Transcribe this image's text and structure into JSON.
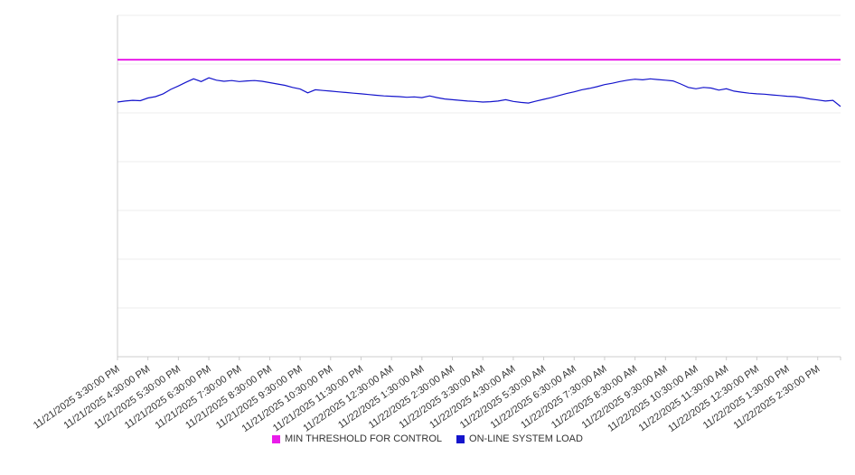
{
  "legend": {
    "position": "bottom-center"
  },
  "chart_data": {
    "type": "line",
    "title": "",
    "xlabel": "",
    "ylabel": "",
    "grid": true,
    "legend_position": "bottom",
    "ylim": [
      0,
      100
    ],
    "y_tick_labels_visible": false,
    "x_tick_labels": [
      "11/21/2025 3:30:00 PM",
      "11/21/2025 4:30:00 PM",
      "11/21/2025 5:30:00 PM",
      "11/21/2025 6:30:00 PM",
      "11/21/2025 7:30:00 PM",
      "11/21/2025 8:30:00 PM",
      "11/21/2025 9:30:00 PM",
      "11/21/2025 10:30:00 PM",
      "11/21/2025 11:30:00 PM",
      "11/22/2025 12:30:00 AM",
      "11/22/2025 1:30:00 AM",
      "11/22/2025 2:30:00 AM",
      "11/22/2025 3:30:00 AM",
      "11/22/2025 4:30:00 AM",
      "11/22/2025 5:30:00 AM",
      "11/22/2025 6:30:00 AM",
      "11/22/2025 7:30:00 AM",
      "11/22/2025 8:30:00 AM",
      "11/22/2025 9:30:00 AM",
      "11/22/2025 10:30:00 AM",
      "11/22/2025 11:30:00 AM",
      "11/22/2025 12:30:00 PM",
      "11/22/2025 1:30:00 PM",
      "11/22/2025 2:30:00 PM"
    ],
    "series": [
      {
        "name": "MIN THRESHOLD FOR CONTROL",
        "color": "#e91ce9",
        "style": "threshold-line",
        "value": 87
      },
      {
        "name": "ON-LINE SYSTEM LOAD",
        "color": "#1414cc",
        "style": "line",
        "samples_per_hour": 4,
        "values": [
          74.6,
          74.9,
          75.1,
          75.0,
          75.8,
          76.2,
          77.0,
          78.3,
          79.3,
          80.4,
          81.4,
          80.6,
          81.7,
          81.0,
          80.7,
          80.9,
          80.6,
          80.8,
          80.9,
          80.7,
          80.3,
          79.9,
          79.5,
          78.9,
          78.4,
          77.3,
          78.2,
          78.0,
          77.8,
          77.6,
          77.4,
          77.2,
          77.0,
          76.8,
          76.6,
          76.4,
          76.3,
          76.2,
          76.0,
          76.1,
          75.9,
          76.4,
          75.9,
          75.5,
          75.3,
          75.1,
          74.9,
          74.8,
          74.6,
          74.7,
          74.9,
          75.3,
          74.8,
          74.5,
          74.3,
          74.9,
          75.4,
          75.9,
          76.5,
          77.1,
          77.6,
          78.2,
          78.6,
          79.1,
          79.7,
          80.1,
          80.6,
          81.0,
          81.3,
          81.1,
          81.4,
          81.2,
          81.0,
          80.8,
          79.9,
          78.9,
          78.5,
          78.9,
          78.7,
          78.1,
          78.5,
          77.8,
          77.5,
          77.2,
          77.0,
          76.9,
          76.7,
          76.5,
          76.3,
          76.2,
          75.9,
          75.5,
          75.2,
          74.9,
          75.1,
          73.3
        ]
      }
    ]
  }
}
